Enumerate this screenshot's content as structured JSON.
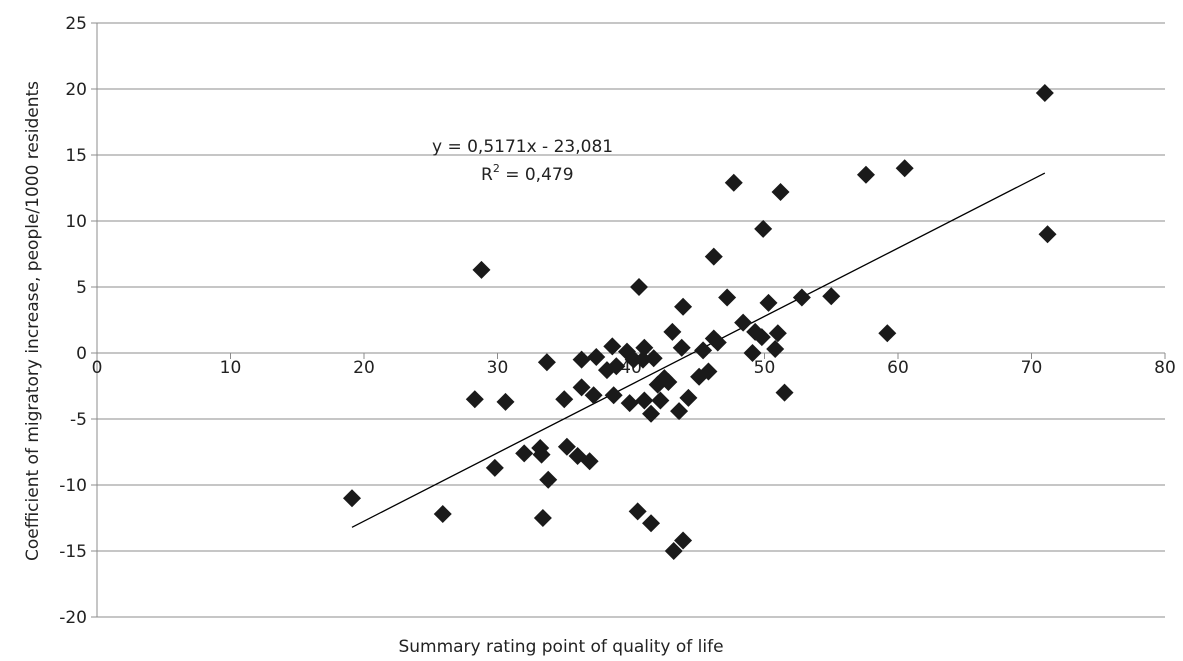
{
  "chart_data": {
    "type": "scatter",
    "xlabel": "Summary rating point of quality of life",
    "ylabel": "Coefficient of migratory increase, people/1000 residents",
    "xlim": [
      0,
      80
    ],
    "ylim": [
      -20,
      25
    ],
    "xticks": [
      "0",
      "10",
      "20",
      "30",
      "40",
      "50",
      "60",
      "70",
      "80"
    ],
    "yticks": [
      "25",
      "20",
      "15",
      "10",
      "5",
      "0",
      "-5",
      "-10",
      "-15",
      "-20"
    ],
    "grid": "horizontal",
    "marker": "diamond",
    "marker_color": "#1a1a1a",
    "trendline": {
      "equation": "y = 0,5171x - 23,081",
      "r2_prefix": "R",
      "r2_sup": "2",
      "r2_value": " = 0,479",
      "slope": 0.5171,
      "intercept": -23.081,
      "x_range": [
        19.1,
        71
      ]
    },
    "points": [
      [
        19.1,
        -11.0
      ],
      [
        25.9,
        -12.2
      ],
      [
        28.3,
        -3.5
      ],
      [
        28.8,
        6.3
      ],
      [
        29.8,
        -8.7
      ],
      [
        30.6,
        -3.7
      ],
      [
        32.0,
        -7.6
      ],
      [
        33.2,
        -7.2
      ],
      [
        33.3,
        -7.7
      ],
      [
        33.4,
        -12.5
      ],
      [
        33.7,
        -0.7
      ],
      [
        33.8,
        -9.6
      ],
      [
        35.0,
        -3.5
      ],
      [
        35.2,
        -7.1
      ],
      [
        36.0,
        -7.8
      ],
      [
        36.3,
        -0.5
      ],
      [
        36.3,
        -2.6
      ],
      [
        36.9,
        -8.2
      ],
      [
        37.2,
        -3.2
      ],
      [
        37.4,
        -0.3
      ],
      [
        38.2,
        -1.3
      ],
      [
        38.6,
        0.5
      ],
      [
        38.7,
        -3.2
      ],
      [
        38.9,
        -1.0
      ],
      [
        39.7,
        0.1
      ],
      [
        39.9,
        -3.8
      ],
      [
        40.2,
        -0.5
      ],
      [
        40.6,
        5.0
      ],
      [
        40.5,
        -12.0
      ],
      [
        40.9,
        -0.5
      ],
      [
        41.0,
        0.4
      ],
      [
        41.0,
        -3.6
      ],
      [
        41.5,
        -12.9
      ],
      [
        41.5,
        -4.6
      ],
      [
        41.7,
        -0.4
      ],
      [
        42.0,
        -2.4
      ],
      [
        42.2,
        -3.6
      ],
      [
        42.5,
        -1.9
      ],
      [
        42.8,
        -2.2
      ],
      [
        43.1,
        1.6
      ],
      [
        43.2,
        -15.0
      ],
      [
        43.6,
        -4.4
      ],
      [
        43.8,
        0.4
      ],
      [
        43.9,
        -14.2
      ],
      [
        43.9,
        3.5
      ],
      [
        44.3,
        -3.4
      ],
      [
        45.1,
        -1.8
      ],
      [
        45.4,
        0.2
      ],
      [
        45.8,
        -1.4
      ],
      [
        46.2,
        7.3
      ],
      [
        46.2,
        1.1
      ],
      [
        46.5,
        0.8
      ],
      [
        47.2,
        4.2
      ],
      [
        47.7,
        12.9
      ],
      [
        48.4,
        2.3
      ],
      [
        49.1,
        0.0
      ],
      [
        49.3,
        1.6
      ],
      [
        49.8,
        1.2
      ],
      [
        49.9,
        9.4
      ],
      [
        50.3,
        3.8
      ],
      [
        50.8,
        0.3
      ],
      [
        51.0,
        1.5
      ],
      [
        51.2,
        12.2
      ],
      [
        51.5,
        -3.0
      ],
      [
        52.8,
        4.2
      ],
      [
        55.0,
        4.3
      ],
      [
        57.6,
        13.5
      ],
      [
        59.2,
        1.5
      ],
      [
        60.5,
        14.0
      ],
      [
        71.0,
        19.7
      ],
      [
        71.2,
        9.0
      ]
    ]
  }
}
